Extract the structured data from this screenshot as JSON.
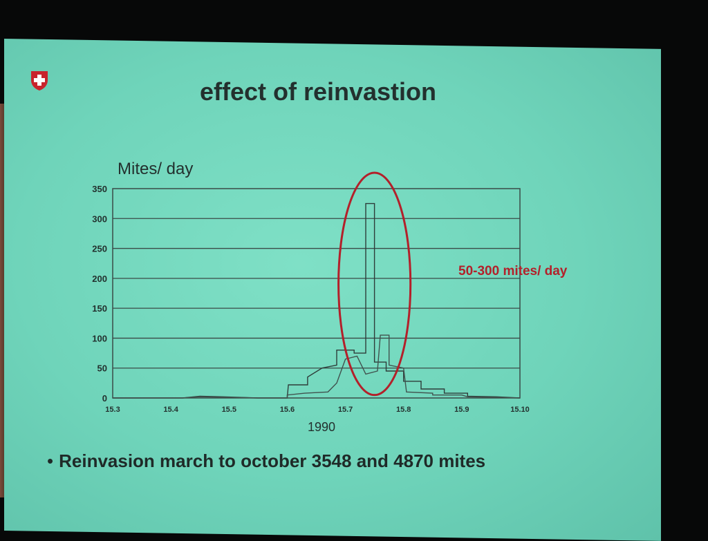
{
  "slide": {
    "title": "effect of reinvastion",
    "bullet": "Reinvasion march to october 3548 and 4870 mites"
  },
  "colors": {
    "screen": "#6fd4ba",
    "ink": "#23302e",
    "annotation": "#b3202a",
    "logo": "#c8242c"
  },
  "icons": {
    "logo": "swiss-cross-shield-icon"
  },
  "chart_data": {
    "type": "line",
    "ylabel": "Mites/ day",
    "xlabel": "1990",
    "ylim": [
      0,
      350
    ],
    "yticks": [
      0,
      50,
      100,
      150,
      200,
      250,
      300,
      350
    ],
    "xticks": [
      "15.3",
      "15.4",
      "15.5",
      "15.6",
      "15.7",
      "15.8",
      "15.9",
      "15.10"
    ],
    "xlim": [
      0,
      7
    ],
    "grid": true,
    "series": [
      {
        "values": [
          [
            0,
            0
          ],
          [
            1.2,
            0
          ],
          [
            1.5,
            3
          ],
          [
            1.9,
            2
          ],
          [
            2.5,
            0
          ],
          [
            3.0,
            0
          ],
          [
            3.02,
            22
          ],
          [
            3.35,
            22
          ],
          [
            3.35,
            35
          ],
          [
            3.6,
            50
          ],
          [
            3.85,
            55
          ],
          [
            3.85,
            80
          ],
          [
            4.15,
            80
          ],
          [
            4.15,
            75
          ],
          [
            4.35,
            75
          ],
          [
            4.35,
            325
          ],
          [
            4.5,
            325
          ],
          [
            4.5,
            60
          ],
          [
            4.7,
            60
          ],
          [
            4.7,
            45
          ],
          [
            5.0,
            45
          ],
          [
            5.0,
            28
          ],
          [
            5.3,
            28
          ],
          [
            5.3,
            15
          ],
          [
            5.7,
            15
          ],
          [
            5.7,
            8
          ],
          [
            6.1,
            8
          ],
          [
            6.1,
            3
          ],
          [
            6.6,
            2
          ],
          [
            7,
            0
          ]
        ]
      },
      {
        "values": [
          [
            0,
            0
          ],
          [
            1.2,
            0
          ],
          [
            1.5,
            2
          ],
          [
            2.5,
            0
          ],
          [
            3.0,
            0
          ],
          [
            3.0,
            5
          ],
          [
            3.3,
            8
          ],
          [
            3.7,
            10
          ],
          [
            3.85,
            25
          ],
          [
            4.0,
            65
          ],
          [
            4.2,
            70
          ],
          [
            4.35,
            40
          ],
          [
            4.55,
            45
          ],
          [
            4.6,
            105
          ],
          [
            4.75,
            105
          ],
          [
            4.75,
            55
          ],
          [
            5.0,
            50
          ],
          [
            5.05,
            10
          ],
          [
            5.5,
            8
          ],
          [
            5.5,
            5
          ],
          [
            6.0,
            5
          ],
          [
            6.1,
            2
          ],
          [
            7,
            0
          ]
        ]
      }
    ],
    "annotations": [
      {
        "text": "50-300 mites/ day",
        "highlight_x_range": [
          4.0,
          5.0
        ],
        "highlight_y_range": [
          20,
          350
        ]
      }
    ]
  }
}
